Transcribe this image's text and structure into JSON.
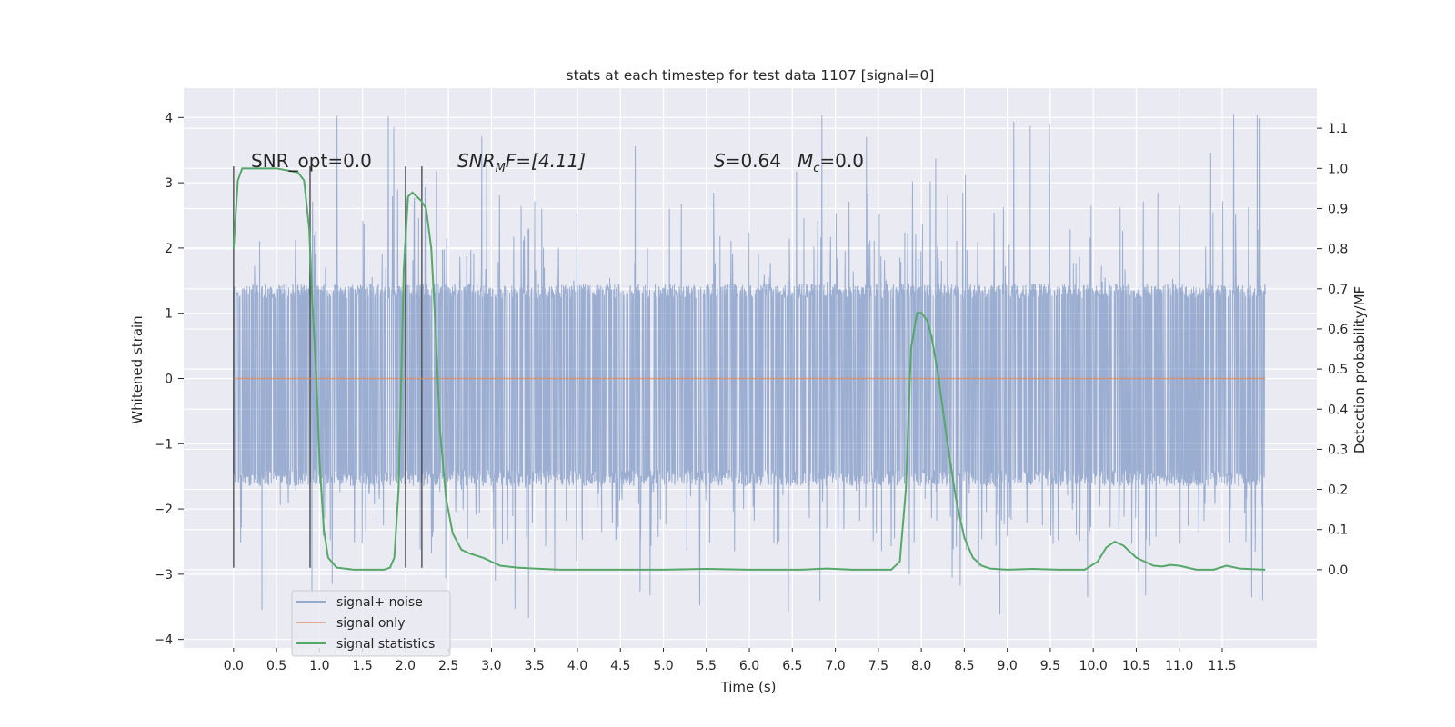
{
  "chart_data": {
    "type": "line",
    "title": "stats at each timestep for test data 1107 [signal=0]",
    "xlabel": "Time (s)",
    "ylabel": "Whitened strain",
    "ylabel_right": "Detection probability/MF",
    "xlim": [
      -0.58,
      12.6
    ],
    "ylim": [
      -4.13,
      4.45
    ],
    "ylim_right": [
      -0.195,
      1.2
    ],
    "x_ticks": [
      0.0,
      0.5,
      1.0,
      1.5,
      2.0,
      2.5,
      3.0,
      3.5,
      4.0,
      4.5,
      5.0,
      5.5,
      6.0,
      6.5,
      7.0,
      7.5,
      8.0,
      8.5,
      9.0,
      9.5,
      10.0,
      10.5,
      11.0,
      11.5
    ],
    "x_tick_labels": [
      "0.0",
      "0.5",
      "1.0",
      "1.5",
      "2.0",
      "2.5",
      "3.0",
      "3.5",
      "4.0",
      "4.5",
      "5.0",
      "5.5",
      "6.0",
      "6.5",
      "7.0",
      "7.5",
      "8.0",
      "8.5",
      "9.0",
      "9.5",
      "10.0",
      "10.5",
      "11.0",
      "11.5"
    ],
    "y_ticks": [
      -4,
      -3,
      -2,
      -1,
      0,
      1,
      2,
      3,
      4
    ],
    "y_tick_labels": [
      "−4",
      "−3",
      "−2",
      "−1",
      "0",
      "1",
      "2",
      "3",
      "4"
    ],
    "y_ticks_right": [
      0.0,
      0.1,
      0.2,
      0.3,
      0.4,
      0.5,
      0.6,
      0.7,
      0.8,
      0.9,
      1.0,
      1.1
    ],
    "y_tick_labels_right": [
      "0.0",
      "0.1",
      "0.2",
      "0.3",
      "0.4",
      "0.5",
      "0.6",
      "0.7",
      "0.8",
      "0.9",
      "1.0",
      "1.1"
    ],
    "grid": true,
    "legend_position": "lower-left",
    "annotations": {
      "snr_opt": "SNR_opt=0.0",
      "snr_mf_main": "SNR",
      "snr_mf_sub": "M",
      "snr_mf_rest": "F=[4.11]",
      "s_label": "S",
      "s_value": "=0.64",
      "mc_main": "M",
      "mc_sub": "c",
      "mc_value": "=0.0"
    },
    "noise_band": {
      "x_range": [
        0.0,
        12.0
      ],
      "envelope": [
        -1.65,
        1.45
      ],
      "spike_max": 4.1,
      "spike_min": -3.7
    },
    "vertical_lines_x": [
      0.0,
      0.89,
      2.0,
      2.19
    ],
    "vertical_lines_y": [
      -2.9,
      3.25
    ],
    "series": [
      {
        "name": "signal+ noise",
        "color": "#4c72b0",
        "note_range": [
          0.0,
          12.0
        ]
      },
      {
        "name": "signal only",
        "color": "#dd8452",
        "x": [
          0.0,
          12.0
        ],
        "y": [
          0.0,
          0.0
        ]
      },
      {
        "name": "signal statistics",
        "color": "#55a868",
        "axis": "right",
        "x": [
          0.0,
          0.05,
          0.1,
          0.15,
          0.3,
          0.5,
          0.75,
          0.82,
          0.88,
          0.92,
          0.97,
          1.0,
          1.05,
          1.1,
          1.2,
          1.4,
          1.6,
          1.75,
          1.82,
          1.87,
          1.92,
          1.98,
          2.03,
          2.08,
          2.13,
          2.18,
          2.24,
          2.3,
          2.35,
          2.4,
          2.47,
          2.55,
          2.65,
          2.75,
          2.9,
          3.1,
          3.3,
          3.5,
          3.8,
          4.2,
          5.0,
          5.5,
          6.0,
          6.6,
          6.9,
          7.2,
          7.5,
          7.65,
          7.75,
          7.82,
          7.88,
          7.95,
          8.0,
          8.07,
          8.12,
          8.2,
          8.3,
          8.4,
          8.5,
          8.6,
          8.7,
          8.8,
          9.0,
          9.3,
          9.6,
          9.9,
          10.05,
          10.15,
          10.25,
          10.35,
          10.5,
          10.7,
          10.8,
          10.9,
          11.0,
          11.2,
          11.4,
          11.55,
          11.7,
          12.0
        ],
        "y": [
          0.8,
          0.97,
          1.0,
          1.0,
          1.0,
          1.0,
          0.99,
          0.97,
          0.85,
          0.65,
          0.45,
          0.27,
          0.1,
          0.03,
          0.005,
          0.0,
          0.0,
          0.0,
          0.005,
          0.03,
          0.2,
          0.75,
          0.93,
          0.94,
          0.93,
          0.92,
          0.9,
          0.8,
          0.6,
          0.35,
          0.18,
          0.09,
          0.05,
          0.04,
          0.03,
          0.01,
          0.005,
          0.003,
          0.0,
          0.0,
          0.0,
          0.002,
          0.0,
          0.0,
          0.003,
          0.0,
          0.0,
          0.0,
          0.02,
          0.2,
          0.55,
          0.64,
          0.64,
          0.62,
          0.58,
          0.48,
          0.32,
          0.18,
          0.08,
          0.03,
          0.01,
          0.003,
          0.0,
          0.002,
          0.0,
          0.0,
          0.02,
          0.055,
          0.07,
          0.06,
          0.03,
          0.01,
          0.008,
          0.012,
          0.01,
          0.0,
          0.0,
          0.01,
          0.003,
          0.0
        ]
      }
    ]
  }
}
